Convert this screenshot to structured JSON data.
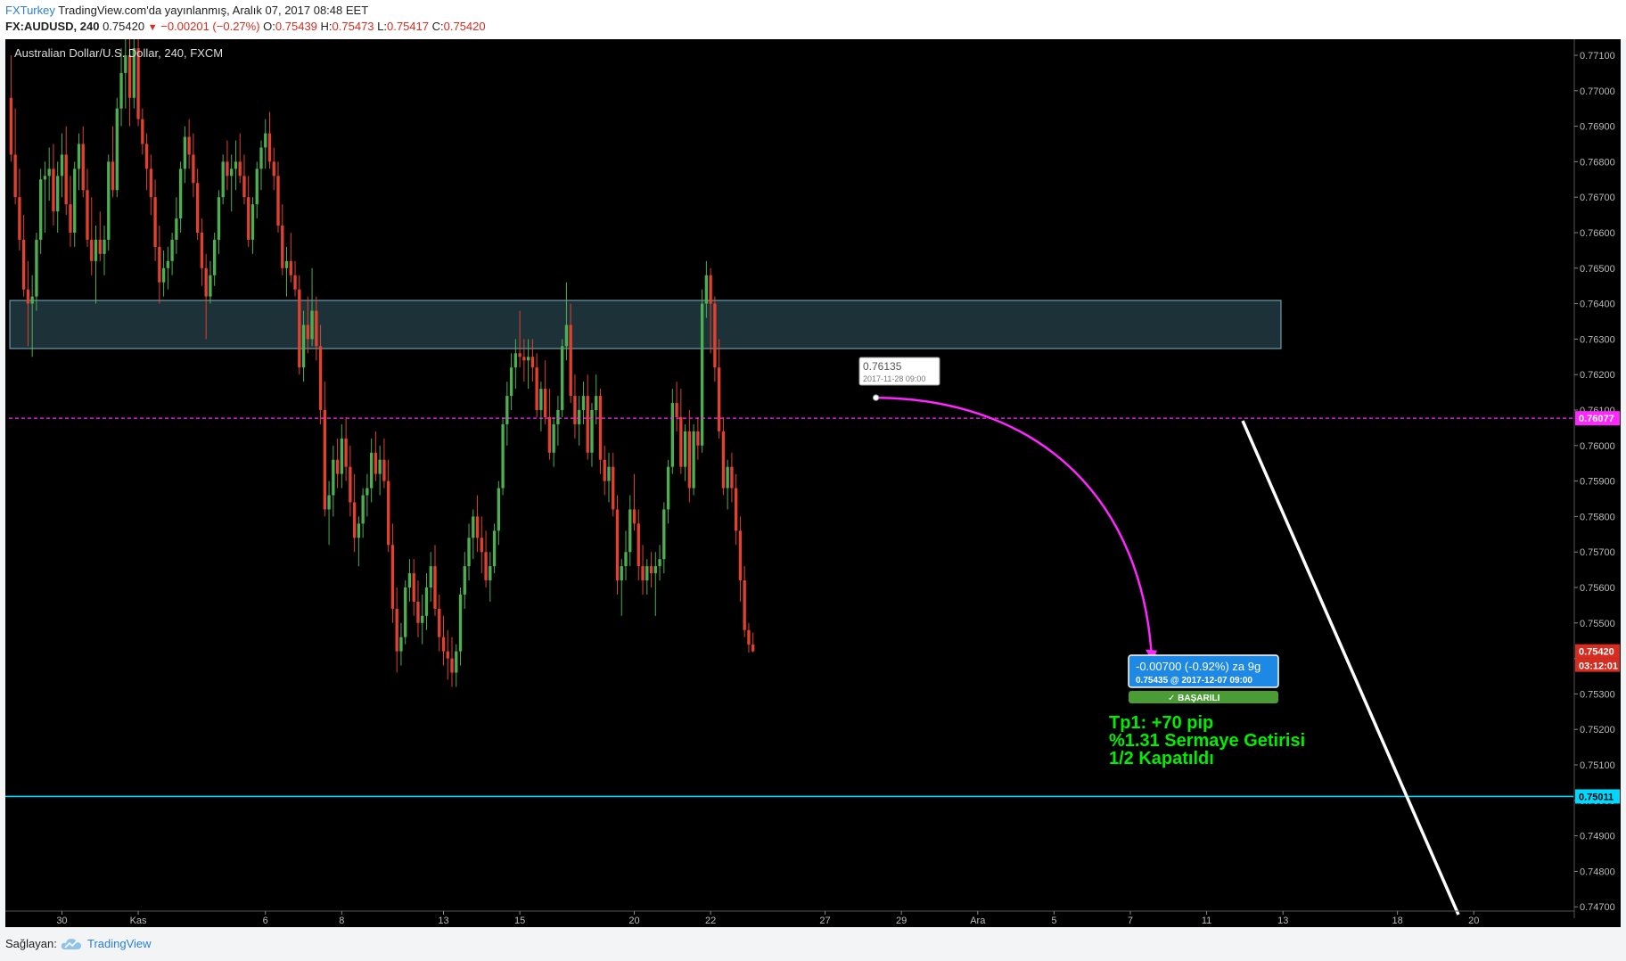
{
  "header": {
    "brand": "FXTurkey",
    "published": "TradingView.com'da yayınlanmış, Aralık 07, 2017 08:48 EET",
    "symbol": "FX:AUDUSD, 240",
    "last": "0.75420",
    "change": "−0.00201 (−0.27%)",
    "o_label": "O:",
    "o": "0.75439",
    "h_label": "H:",
    "h": "0.75473",
    "l_label": "L:",
    "l": "0.75417",
    "c_label": "C:",
    "c": "0.75420"
  },
  "chart_title": "Australian Dollar/U.S. Dollar, 240, FXCM",
  "footer": {
    "label": "Sağlayan:",
    "provider": "TradingView"
  },
  "colors": {
    "up": "#4caf50",
    "down": "#e2412d",
    "zone": "#1d3138",
    "magenta": "#ff26ff",
    "cyan": "#00d8ff",
    "price_tag": "#d62d20",
    "blue_box": "#1e88e5",
    "success": "#4a9d35",
    "tp_text": "#00ee00"
  },
  "chart_data": {
    "type": "candlestick",
    "title": "Australian Dollar/U.S. Dollar, 240, FXCM",
    "y_range": [
      0.7465,
      0.7715
    ],
    "y_ticks": [
      "0.77100",
      "0.77000",
      "0.76900",
      "0.76800",
      "0.76700",
      "0.76600",
      "0.76500",
      "0.76400",
      "0.76300",
      "0.76200",
      "0.76100",
      "0.76000",
      "0.75900",
      "0.75800",
      "0.75700",
      "0.75600",
      "0.75500",
      "0.75400",
      "0.75300",
      "0.75200",
      "0.75100",
      "0.75000",
      "0.74900",
      "0.74800",
      "0.74700"
    ],
    "x_ticks": [
      {
        "label": "30",
        "bar": 12
      },
      {
        "label": "Kas",
        "bar": 30
      },
      {
        "label": "6",
        "bar": 60
      },
      {
        "label": "8",
        "bar": 78
      },
      {
        "label": "13",
        "bar": 102
      },
      {
        "label": "15",
        "bar": 120
      },
      {
        "label": "20",
        "bar": 147
      },
      {
        "label": "22",
        "bar": 165
      },
      {
        "label": "27",
        "bar": 192
      },
      {
        "label": "29",
        "bar": 210
      },
      {
        "label": "Ara",
        "bar": 228
      },
      {
        "label": "5",
        "bar": 246
      },
      {
        "label": "7",
        "bar": 264
      },
      {
        "label": "11",
        "bar": 282
      },
      {
        "label": "13",
        "bar": 300
      },
      {
        "label": "18",
        "bar": 327
      },
      {
        "label": "20",
        "bar": 345
      }
    ],
    "bars_total": 369,
    "candles": [
      [
        0.7698,
        0.771,
        0.768,
        0.7682
      ],
      [
        0.7682,
        0.7695,
        0.7668,
        0.767
      ],
      [
        0.767,
        0.7678,
        0.7655,
        0.7658
      ],
      [
        0.7658,
        0.7665,
        0.7642,
        0.7644
      ],
      [
        0.7644,
        0.7652,
        0.7628,
        0.764
      ],
      [
        0.764,
        0.7648,
        0.7625,
        0.7642
      ],
      [
        0.7642,
        0.766,
        0.7638,
        0.7658
      ],
      [
        0.7658,
        0.7678,
        0.7654,
        0.7675
      ],
      [
        0.7675,
        0.768,
        0.766,
        0.7676
      ],
      [
        0.7676,
        0.7684,
        0.7669,
        0.7678
      ],
      [
        0.7678,
        0.7685,
        0.7662,
        0.7666
      ],
      [
        0.7666,
        0.768,
        0.766,
        0.7676
      ],
      [
        0.7676,
        0.7688,
        0.767,
        0.7682
      ],
      [
        0.7682,
        0.769,
        0.7665,
        0.7668
      ],
      [
        0.7668,
        0.7676,
        0.7656,
        0.766
      ],
      [
        0.766,
        0.768,
        0.7656,
        0.7678
      ],
      [
        0.7678,
        0.7688,
        0.7672,
        0.7685
      ],
      [
        0.7685,
        0.769,
        0.767,
        0.7672
      ],
      [
        0.7672,
        0.7678,
        0.7656,
        0.7658
      ],
      [
        0.7658,
        0.767,
        0.7648,
        0.7652
      ],
      [
        0.7652,
        0.7662,
        0.764,
        0.7658
      ],
      [
        0.7658,
        0.7666,
        0.7652,
        0.7654
      ],
      [
        0.7654,
        0.7662,
        0.7648,
        0.7658
      ],
      [
        0.7658,
        0.7682,
        0.7655,
        0.768
      ],
      [
        0.768,
        0.769,
        0.767,
        0.7672
      ],
      [
        0.7672,
        0.7698,
        0.767,
        0.7695
      ],
      [
        0.7695,
        0.7712,
        0.769,
        0.7705
      ],
      [
        0.7705,
        0.7715,
        0.7695,
        0.771
      ],
      [
        0.771,
        0.7715,
        0.769,
        0.7698
      ],
      [
        0.7698,
        0.7715,
        0.7695,
        0.7712
      ],
      [
        0.7712,
        0.7715,
        0.769,
        0.7692
      ],
      [
        0.7692,
        0.7695,
        0.7682,
        0.7685
      ],
      [
        0.7685,
        0.7688,
        0.7672,
        0.7678
      ],
      [
        0.7678,
        0.7682,
        0.7665,
        0.767
      ],
      [
        0.767,
        0.7675,
        0.7652,
        0.7656
      ],
      [
        0.7656,
        0.7662,
        0.764,
        0.7646
      ],
      [
        0.7646,
        0.7655,
        0.7642,
        0.765
      ],
      [
        0.765,
        0.7656,
        0.7644,
        0.7652
      ],
      [
        0.7652,
        0.766,
        0.7648,
        0.7658
      ],
      [
        0.7658,
        0.767,
        0.7654,
        0.7664
      ],
      [
        0.7664,
        0.768,
        0.766,
        0.7678
      ],
      [
        0.7678,
        0.769,
        0.7674,
        0.7687
      ],
      [
        0.7687,
        0.7692,
        0.7678,
        0.7682
      ],
      [
        0.7682,
        0.7688,
        0.767,
        0.7674
      ],
      [
        0.7674,
        0.7678,
        0.7658,
        0.766
      ],
      [
        0.766,
        0.7664,
        0.7645,
        0.765
      ],
      [
        0.765,
        0.7654,
        0.763,
        0.7642
      ],
      [
        0.7642,
        0.7652,
        0.764,
        0.7648
      ],
      [
        0.7648,
        0.766,
        0.7645,
        0.7658
      ],
      [
        0.7658,
        0.7672,
        0.7654,
        0.767
      ],
      [
        0.767,
        0.7682,
        0.7668,
        0.768
      ],
      [
        0.768,
        0.7686,
        0.7672,
        0.7676
      ],
      [
        0.7676,
        0.7682,
        0.7666,
        0.7678
      ],
      [
        0.7678,
        0.7686,
        0.7672,
        0.768
      ],
      [
        0.768,
        0.7688,
        0.7674,
        0.7676
      ],
      [
        0.7676,
        0.7682,
        0.7668,
        0.767
      ],
      [
        0.767,
        0.7676,
        0.7656,
        0.7658
      ],
      [
        0.7658,
        0.767,
        0.7654,
        0.7668
      ],
      [
        0.7668,
        0.768,
        0.7664,
        0.7678
      ],
      [
        0.7678,
        0.7686,
        0.7672,
        0.7684
      ],
      [
        0.7684,
        0.7692,
        0.7678,
        0.7688
      ],
      [
        0.7688,
        0.7694,
        0.7678,
        0.768
      ],
      [
        0.768,
        0.7684,
        0.7672,
        0.7676
      ],
      [
        0.7676,
        0.768,
        0.766,
        0.7662
      ],
      [
        0.7662,
        0.7668,
        0.7648,
        0.765
      ],
      [
        0.765,
        0.7656,
        0.7642,
        0.7652
      ],
      [
        0.7652,
        0.766,
        0.7646,
        0.7648
      ],
      [
        0.7648,
        0.7652,
        0.7642,
        0.7644
      ],
      [
        0.7644,
        0.7648,
        0.762,
        0.7622
      ],
      [
        0.7622,
        0.7638,
        0.7618,
        0.7634
      ],
      [
        0.7634,
        0.7642,
        0.7626,
        0.763
      ],
      [
        0.763,
        0.765,
        0.7628,
        0.7638
      ],
      [
        0.7638,
        0.7642,
        0.7624,
        0.7628
      ],
      [
        0.7628,
        0.7634,
        0.7606,
        0.761
      ],
      [
        0.761,
        0.7618,
        0.758,
        0.7582
      ],
      [
        0.7582,
        0.759,
        0.7572,
        0.7586
      ],
      [
        0.7586,
        0.76,
        0.758,
        0.7596
      ],
      [
        0.7596,
        0.7602,
        0.7588,
        0.7592
      ],
      [
        0.7592,
        0.7606,
        0.7588,
        0.7602
      ],
      [
        0.7602,
        0.7608,
        0.759,
        0.7594
      ],
      [
        0.7594,
        0.76,
        0.758,
        0.7584
      ],
      [
        0.7584,
        0.7592,
        0.757,
        0.7574
      ],
      [
        0.7574,
        0.758,
        0.7566,
        0.7578
      ],
      [
        0.7578,
        0.7588,
        0.7574,
        0.7586
      ],
      [
        0.7586,
        0.7592,
        0.758,
        0.7588
      ],
      [
        0.7588,
        0.7602,
        0.7584,
        0.7598
      ],
      [
        0.7598,
        0.7604,
        0.759,
        0.7592
      ],
      [
        0.7592,
        0.76,
        0.7586,
        0.7596
      ],
      [
        0.7596,
        0.7602,
        0.7588,
        0.759
      ],
      [
        0.759,
        0.7596,
        0.757,
        0.7572
      ],
      [
        0.7572,
        0.7578,
        0.755,
        0.7554
      ],
      [
        0.7554,
        0.756,
        0.7536,
        0.7542
      ],
      [
        0.7542,
        0.755,
        0.7538,
        0.7546
      ],
      [
        0.7546,
        0.7562,
        0.7544,
        0.756
      ],
      [
        0.756,
        0.7568,
        0.7556,
        0.7564
      ],
      [
        0.7564,
        0.7568,
        0.7552,
        0.7556
      ],
      [
        0.7556,
        0.7562,
        0.7546,
        0.755
      ],
      [
        0.755,
        0.7558,
        0.7544,
        0.7552
      ],
      [
        0.7552,
        0.7564,
        0.7548,
        0.756
      ],
      [
        0.756,
        0.757,
        0.7556,
        0.7566
      ],
      [
        0.7566,
        0.7572,
        0.7552,
        0.7554
      ],
      [
        0.7554,
        0.7558,
        0.7542,
        0.7546
      ],
      [
        0.7546,
        0.7552,
        0.7538,
        0.7542
      ],
      [
        0.7542,
        0.7548,
        0.7534,
        0.754
      ],
      [
        0.754,
        0.7546,
        0.7532,
        0.7536
      ],
      [
        0.7536,
        0.7544,
        0.7532,
        0.7542
      ],
      [
        0.7542,
        0.756,
        0.7538,
        0.7558
      ],
      [
        0.7558,
        0.757,
        0.7554,
        0.7566
      ],
      [
        0.7566,
        0.7578,
        0.7562,
        0.7574
      ],
      [
        0.7574,
        0.7582,
        0.7568,
        0.758
      ],
      [
        0.758,
        0.7586,
        0.757,
        0.7574
      ],
      [
        0.7574,
        0.758,
        0.7564,
        0.757
      ],
      [
        0.757,
        0.7576,
        0.756,
        0.7562
      ],
      [
        0.7562,
        0.757,
        0.7556,
        0.7566
      ],
      [
        0.7566,
        0.7578,
        0.7564,
        0.7576
      ],
      [
        0.7576,
        0.759,
        0.7572,
        0.7588
      ],
      [
        0.7588,
        0.7608,
        0.7586,
        0.7606
      ],
      [
        0.7606,
        0.7618,
        0.76,
        0.7614
      ],
      [
        0.7614,
        0.7626,
        0.761,
        0.7622
      ],
      [
        0.7622,
        0.763,
        0.7616,
        0.7626
      ],
      [
        0.7626,
        0.7638,
        0.7622,
        0.7625
      ],
      [
        0.7625,
        0.763,
        0.7618,
        0.7624
      ],
      [
        0.7624,
        0.763,
        0.7616,
        0.7625
      ],
      [
        0.7625,
        0.763,
        0.7618,
        0.7622
      ],
      [
        0.7622,
        0.7626,
        0.7608,
        0.761
      ],
      [
        0.761,
        0.7618,
        0.7604,
        0.7616
      ],
      [
        0.7616,
        0.7624,
        0.7606,
        0.7608
      ],
      [
        0.7608,
        0.7616,
        0.7596,
        0.7598
      ],
      [
        0.7598,
        0.7608,
        0.7594,
        0.7606
      ],
      [
        0.7606,
        0.7614,
        0.76,
        0.761
      ],
      [
        0.761,
        0.763,
        0.7608,
        0.7628
      ],
      [
        0.7628,
        0.7646,
        0.7624,
        0.7634
      ],
      [
        0.7634,
        0.764,
        0.7612,
        0.7614
      ],
      [
        0.7614,
        0.762,
        0.7602,
        0.7606
      ],
      [
        0.7606,
        0.7614,
        0.76,
        0.761
      ],
      [
        0.761,
        0.7618,
        0.7606,
        0.7614
      ],
      [
        0.7614,
        0.762,
        0.7596,
        0.7598
      ],
      [
        0.7598,
        0.7612,
        0.7594,
        0.761
      ],
      [
        0.761,
        0.762,
        0.7606,
        0.7614
      ],
      [
        0.7614,
        0.7616,
        0.7592,
        0.7596
      ],
      [
        0.7596,
        0.76,
        0.7586,
        0.759
      ],
      [
        0.759,
        0.7598,
        0.7584,
        0.7594
      ],
      [
        0.7594,
        0.7598,
        0.758,
        0.7582
      ],
      [
        0.7582,
        0.7586,
        0.7558,
        0.7562
      ],
      [
        0.7562,
        0.7568,
        0.7552,
        0.7566
      ],
      [
        0.7566,
        0.7576,
        0.7562,
        0.757
      ],
      [
        0.757,
        0.7586,
        0.7566,
        0.7582
      ],
      [
        0.7582,
        0.7592,
        0.7576,
        0.7578
      ],
      [
        0.7578,
        0.7582,
        0.7562,
        0.7566
      ],
      [
        0.7566,
        0.7572,
        0.7558,
        0.7562
      ],
      [
        0.7562,
        0.7568,
        0.7558,
        0.7566
      ],
      [
        0.7566,
        0.757,
        0.756,
        0.7564
      ],
      [
        0.7564,
        0.757,
        0.7552,
        0.7566
      ],
      [
        0.7566,
        0.7572,
        0.7562,
        0.7568
      ],
      [
        0.7568,
        0.7584,
        0.7564,
        0.7582
      ],
      [
        0.7582,
        0.7596,
        0.7578,
        0.7594
      ],
      [
        0.7594,
        0.7616,
        0.7592,
        0.7612
      ],
      [
        0.7612,
        0.7618,
        0.7604,
        0.7608
      ],
      [
        0.7608,
        0.7616,
        0.7592,
        0.7594
      ],
      [
        0.7594,
        0.7606,
        0.759,
        0.7604
      ],
      [
        0.7604,
        0.761,
        0.7584,
        0.7588
      ],
      [
        0.7588,
        0.7606,
        0.7586,
        0.7604
      ],
      [
        0.7604,
        0.7608,
        0.7596,
        0.76
      ],
      [
        0.76,
        0.7644,
        0.7598,
        0.764
      ],
      [
        0.764,
        0.7652,
        0.7636,
        0.7648
      ],
      [
        0.7648,
        0.765,
        0.7626,
        0.764
      ],
      [
        0.764,
        0.7642,
        0.7618,
        0.7622
      ],
      [
        0.7622,
        0.763,
        0.7602,
        0.7604
      ],
      [
        0.7604,
        0.7608,
        0.7586,
        0.7588
      ],
      [
        0.7588,
        0.7596,
        0.7582,
        0.7594
      ],
      [
        0.7594,
        0.7598,
        0.7584,
        0.7588
      ],
      [
        0.7588,
        0.7592,
        0.7572,
        0.7576
      ],
      [
        0.7576,
        0.758,
        0.7556,
        0.7562
      ],
      [
        0.7562,
        0.7566,
        0.7546,
        0.7548
      ],
      [
        0.7548,
        0.755,
        0.75417,
        0.75439
      ],
      [
        0.75439,
        0.75473,
        0.75417,
        0.7542
      ]
    ],
    "resistance_zone": [
      0.7627,
      0.7641
    ],
    "entry": {
      "price": "0.76135",
      "time": "2017-11-28 09:00"
    },
    "target_line": {
      "price": "0.76077",
      "style": "dashed"
    },
    "support_line": {
      "price": "0.75011"
    },
    "current_price": "0.75420",
    "countdown": "03:12:01",
    "measure": {
      "line1": "-0.00700 (-0.92%) za 9g",
      "line2": "0.75435 @ 2017-12-07 09:00"
    },
    "result_badge": "BAŞARILI",
    "annotation": [
      "Tp1: +70 pip",
      "%1.31 Sermaye Getirisi",
      "1/2 Kapatıldı"
    ]
  }
}
